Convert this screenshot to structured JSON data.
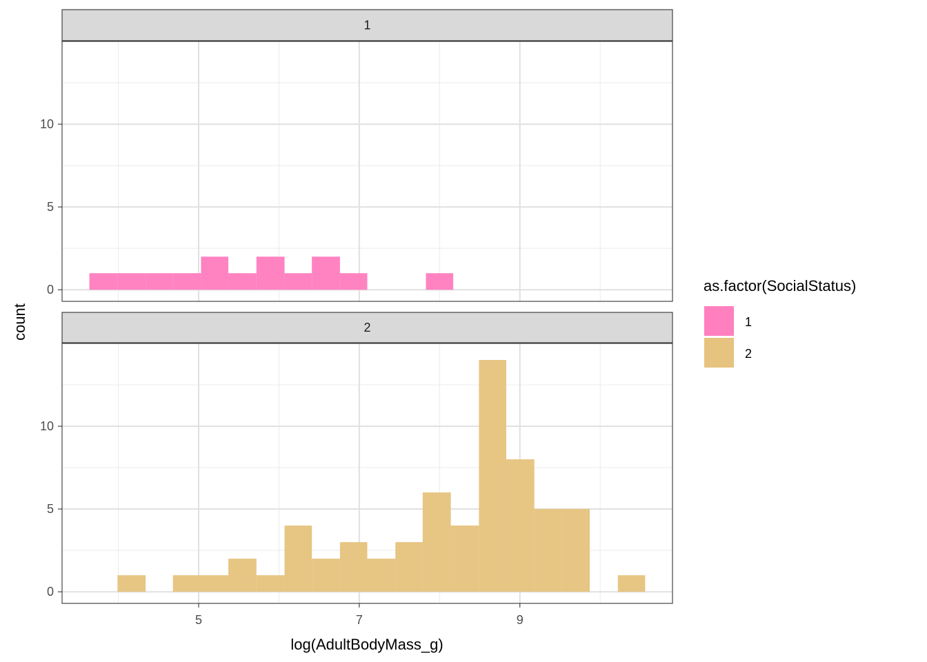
{
  "chart_data": {
    "type": "histogram",
    "xlabel": "log(AdultBodyMass_g)",
    "ylabel": "count",
    "x_ticks": [
      5,
      7,
      9
    ],
    "y_ticks": [
      0,
      5,
      10
    ],
    "xlim": [
      3.3,
      10.9
    ],
    "ylim": [
      -0.7,
      15
    ],
    "grid": true,
    "bin_width": 0.346,
    "legend": {
      "title": "as.factor(SocialStatus)",
      "placement": "right",
      "items": [
        {
          "label": "1",
          "color": "#ff7fbf"
        },
        {
          "label": "2",
          "color": "#e6c37f"
        }
      ]
    },
    "panels": [
      {
        "strip": "1",
        "color": "#ff7fbf",
        "bins": [
          {
            "x0": 3.64,
            "x1": 3.99,
            "count": 1
          },
          {
            "x0": 3.99,
            "x1": 4.34,
            "count": 1
          },
          {
            "x0": 4.34,
            "x1": 4.68,
            "count": 1
          },
          {
            "x0": 4.68,
            "x1": 5.03,
            "count": 1
          },
          {
            "x0": 5.03,
            "x1": 5.37,
            "count": 2
          },
          {
            "x0": 5.37,
            "x1": 5.72,
            "count": 1
          },
          {
            "x0": 5.72,
            "x1": 6.07,
            "count": 2
          },
          {
            "x0": 6.07,
            "x1": 6.41,
            "count": 1
          },
          {
            "x0": 6.41,
            "x1": 6.76,
            "count": 2
          },
          {
            "x0": 6.76,
            "x1": 7.1,
            "count": 1
          },
          {
            "x0": 7.83,
            "x1": 8.17,
            "count": 1
          }
        ]
      },
      {
        "strip": "2",
        "color": "#e6c37f",
        "bins": [
          {
            "x0": 3.99,
            "x1": 4.34,
            "count": 1
          },
          {
            "x0": 4.68,
            "x1": 5.03,
            "count": 1
          },
          {
            "x0": 5.03,
            "x1": 5.37,
            "count": 1
          },
          {
            "x0": 5.37,
            "x1": 5.72,
            "count": 2
          },
          {
            "x0": 5.72,
            "x1": 6.07,
            "count": 1
          },
          {
            "x0": 6.07,
            "x1": 6.41,
            "count": 4
          },
          {
            "x0": 6.41,
            "x1": 6.76,
            "count": 2
          },
          {
            "x0": 6.76,
            "x1": 7.1,
            "count": 3
          },
          {
            "x0": 7.1,
            "x1": 7.45,
            "count": 2
          },
          {
            "x0": 7.45,
            "x1": 7.79,
            "count": 3
          },
          {
            "x0": 7.79,
            "x1": 8.14,
            "count": 6
          },
          {
            "x0": 8.14,
            "x1": 8.49,
            "count": 4
          },
          {
            "x0": 8.49,
            "x1": 8.83,
            "count": 14
          },
          {
            "x0": 8.83,
            "x1": 9.18,
            "count": 8
          },
          {
            "x0": 9.18,
            "x1": 9.52,
            "count": 5
          },
          {
            "x0": 9.52,
            "x1": 9.87,
            "count": 5
          },
          {
            "x0": 10.22,
            "x1": 10.56,
            "count": 1
          }
        ]
      }
    ]
  }
}
